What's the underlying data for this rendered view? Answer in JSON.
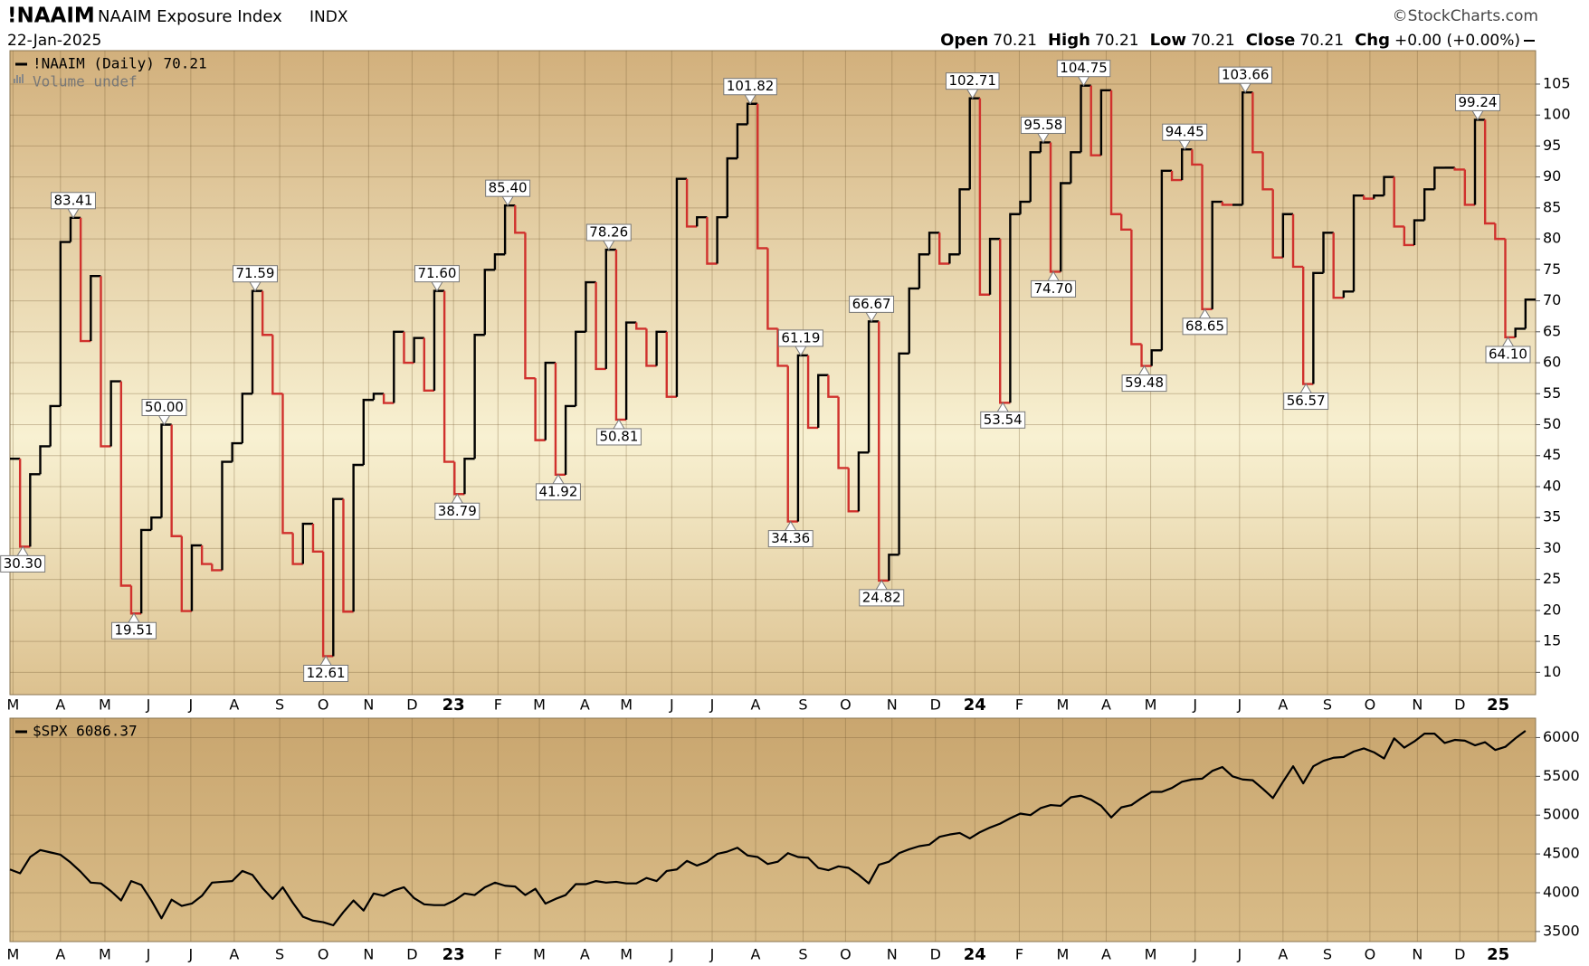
{
  "header": {
    "symbol": "!NAAIM",
    "name": "NAAIM Exposure Index",
    "exchange": "INDX",
    "date": "22-Jan-2025",
    "source": "©StockCharts.com",
    "quote": [
      {
        "label": "Open",
        "value": "70.21"
      },
      {
        "label": "High",
        "value": "70.21"
      },
      {
        "label": "Low",
        "value": "70.21"
      },
      {
        "label": "Close",
        "value": "70.21"
      },
      {
        "label": "Chg",
        "value": "+0.00 (+0.00%)"
      }
    ]
  },
  "chart_data": [
    {
      "type": "line",
      "step": true,
      "grid": true,
      "legend_extra": "Volume undef",
      "xlim": [
        0,
        151
      ],
      "ylim": [
        6.4,
        110.4
      ],
      "yticks": [
        10,
        15,
        20,
        25,
        30,
        35,
        40,
        45,
        50,
        55,
        60,
        65,
        70,
        75,
        80,
        85,
        90,
        95,
        100,
        105
      ],
      "xticks": [
        {
          "value": 0.3,
          "label": "M"
        },
        {
          "value": 5,
          "label": "A"
        },
        {
          "value": 9.4,
          "label": "M"
        },
        {
          "value": 13.7,
          "label": "J"
        },
        {
          "value": 17.9,
          "label": "J"
        },
        {
          "value": 22.2,
          "label": "A"
        },
        {
          "value": 26.7,
          "label": "S"
        },
        {
          "value": 31,
          "label": "O"
        },
        {
          "value": 35.5,
          "label": "N"
        },
        {
          "value": 39.8,
          "label": "D"
        },
        {
          "value": 43.9,
          "label": "23"
        },
        {
          "value": 48.3,
          "label": "F"
        },
        {
          "value": 52.4,
          "label": "M"
        },
        {
          "value": 56.9,
          "label": "A"
        },
        {
          "value": 61,
          "label": "M"
        },
        {
          "value": 65.5,
          "label": "J"
        },
        {
          "value": 69.5,
          "label": "J"
        },
        {
          "value": 73.8,
          "label": "A"
        },
        {
          "value": 78.5,
          "label": "S"
        },
        {
          "value": 82.7,
          "label": "O"
        },
        {
          "value": 87.3,
          "label": "N"
        },
        {
          "value": 91.6,
          "label": "D"
        },
        {
          "value": 95.5,
          "label": "24"
        },
        {
          "value": 99.9,
          "label": "F"
        },
        {
          "value": 104.2,
          "label": "M"
        },
        {
          "value": 108.5,
          "label": "A"
        },
        {
          "value": 112.9,
          "label": "M"
        },
        {
          "value": 117.3,
          "label": "J"
        },
        {
          "value": 121.7,
          "label": "J"
        },
        {
          "value": 126,
          "label": "A"
        },
        {
          "value": 130.4,
          "label": "S"
        },
        {
          "value": 134.6,
          "label": "O"
        },
        {
          "value": 139.3,
          "label": "N"
        },
        {
          "value": 143.5,
          "label": "D"
        },
        {
          "value": 147.3,
          "label": "25"
        }
      ],
      "series": [
        {
          "name": "!NAAIM (Daily) 70.21",
          "color": "#000000",
          "down_color": "#d0312d",
          "values": [
            44.5,
            30.3,
            42,
            46.5,
            53,
            79.5,
            83.41,
            63.5,
            74,
            46.5,
            57,
            24,
            19.51,
            33,
            35,
            50,
            32,
            19.9,
            30.5,
            27.5,
            26.5,
            44,
            47,
            55,
            71.59,
            64.5,
            55,
            32.5,
            27.5,
            34,
            29.5,
            12.61,
            38,
            19.8,
            43.5,
            54,
            55,
            53.5,
            65,
            60,
            64,
            55.5,
            71.6,
            44,
            38.79,
            44.5,
            64.5,
            75,
            77.5,
            85.4,
            81,
            57.5,
            47.5,
            60,
            41.92,
            53,
            65,
            73,
            59,
            78.26,
            50.81,
            66.5,
            65.5,
            59.5,
            65,
            54.5,
            89.7,
            82,
            83.5,
            76,
            83.5,
            93,
            98.5,
            101.82,
            78.5,
            65.5,
            59.5,
            34.36,
            61.19,
            49.5,
            58,
            54.5,
            43,
            36,
            45.5,
            66.67,
            24.82,
            29,
            61.5,
            72,
            77.5,
            81,
            76,
            77.5,
            88,
            102.71,
            71,
            80,
            53.54,
            84,
            86,
            94,
            95.58,
            74.7,
            89,
            94,
            104.75,
            93.5,
            104,
            84,
            81.5,
            63,
            59.48,
            62,
            91,
            89.5,
            94.45,
            92,
            68.65,
            86,
            85.5,
            85.5,
            103.66,
            94,
            88,
            77,
            84,
            75.5,
            56.57,
            74.5,
            81,
            70.5,
            71.5,
            87,
            86.5,
            87,
            90,
            82,
            79,
            83,
            88,
            91.5,
            91.5,
            91.2,
            85.5,
            99.24,
            82.5,
            80,
            64.1,
            65.5,
            70.21
          ],
          "value_labels": [
            null,
            "30.30",
            null,
            null,
            null,
            null,
            "83.41",
            null,
            null,
            null,
            null,
            null,
            "19.51",
            null,
            null,
            "50.00",
            null,
            null,
            null,
            null,
            null,
            null,
            null,
            null,
            "71.59",
            null,
            null,
            null,
            null,
            null,
            null,
            "12.61",
            null,
            null,
            null,
            null,
            null,
            null,
            null,
            null,
            null,
            null,
            "71.60",
            null,
            "38.79",
            null,
            null,
            null,
            null,
            "85.40",
            null,
            null,
            null,
            null,
            "41.92",
            null,
            null,
            null,
            null,
            "78.26",
            "50.81",
            null,
            null,
            null,
            null,
            null,
            null,
            null,
            null,
            null,
            null,
            null,
            null,
            "101.82",
            null,
            null,
            null,
            "34.36",
            "61.19",
            null,
            null,
            null,
            null,
            null,
            null,
            "66.67",
            "24.82",
            null,
            null,
            null,
            null,
            null,
            null,
            null,
            null,
            "102.71",
            null,
            null,
            "53.54",
            null,
            null,
            null,
            "95.58",
            "74.70",
            null,
            null,
            "104.75",
            null,
            null,
            null,
            null,
            null,
            "59.48",
            null,
            null,
            null,
            "94.45",
            null,
            "68.65",
            null,
            null,
            null,
            "103.66",
            null,
            null,
            null,
            null,
            null,
            "56.57",
            null,
            null,
            null,
            null,
            null,
            null,
            null,
            null,
            null,
            null,
            null,
            null,
            null,
            null,
            null,
            null,
            "99.24",
            null,
            null,
            "64.10",
            null,
            null
          ]
        }
      ]
    },
    {
      "type": "line",
      "grid": true,
      "xlim": [
        0,
        151
      ],
      "ylim": [
        3370,
        6250
      ],
      "yticks": [
        3500,
        4000,
        4500,
        5000,
        5500,
        6000
      ],
      "xticks": [
        {
          "value": 0.3,
          "label": "M"
        },
        {
          "value": 5,
          "label": "A"
        },
        {
          "value": 9.4,
          "label": "M"
        },
        {
          "value": 13.7,
          "label": "J"
        },
        {
          "value": 17.9,
          "label": "J"
        },
        {
          "value": 22.2,
          "label": "A"
        },
        {
          "value": 26.7,
          "label": "S"
        },
        {
          "value": 31,
          "label": "O"
        },
        {
          "value": 35.5,
          "label": "N"
        },
        {
          "value": 39.8,
          "label": "D"
        },
        {
          "value": 43.9,
          "label": "23"
        },
        {
          "value": 48.3,
          "label": "F"
        },
        {
          "value": 52.4,
          "label": "M"
        },
        {
          "value": 56.9,
          "label": "A"
        },
        {
          "value": 61,
          "label": "M"
        },
        {
          "value": 65.5,
          "label": "J"
        },
        {
          "value": 69.5,
          "label": "J"
        },
        {
          "value": 73.8,
          "label": "A"
        },
        {
          "value": 78.5,
          "label": "S"
        },
        {
          "value": 82.7,
          "label": "O"
        },
        {
          "value": 87.3,
          "label": "N"
        },
        {
          "value": 91.6,
          "label": "D"
        },
        {
          "value": 95.5,
          "label": "24"
        },
        {
          "value": 99.9,
          "label": "F"
        },
        {
          "value": 104.2,
          "label": "M"
        },
        {
          "value": 108.5,
          "label": "A"
        },
        {
          "value": 112.9,
          "label": "M"
        },
        {
          "value": 117.3,
          "label": "J"
        },
        {
          "value": 121.7,
          "label": "J"
        },
        {
          "value": 126,
          "label": "A"
        },
        {
          "value": 130.4,
          "label": "S"
        },
        {
          "value": 134.6,
          "label": "O"
        },
        {
          "value": 139.3,
          "label": "N"
        },
        {
          "value": 143.5,
          "label": "D"
        },
        {
          "value": 147.3,
          "label": "25"
        }
      ],
      "series": [
        {
          "name": "$SPX 6086.37",
          "color": "#000000",
          "values": [
            4300,
            4250,
            4460,
            4550,
            4520,
            4490,
            4390,
            4270,
            4130,
            4120,
            4020,
            3900,
            4150,
            4100,
            3900,
            3670,
            3910,
            3830,
            3860,
            3960,
            4130,
            4140,
            4150,
            4280,
            4230,
            4060,
            3920,
            4070,
            3870,
            3690,
            3640,
            3620,
            3580,
            3750,
            3900,
            3770,
            3990,
            3960,
            4030,
            4070,
            3930,
            3850,
            3840,
            3840,
            3900,
            3990,
            3970,
            4070,
            4130,
            4090,
            4080,
            3970,
            4050,
            3860,
            3920,
            3970,
            4110,
            4110,
            4150,
            4130,
            4140,
            4120,
            4120,
            4190,
            4150,
            4280,
            4300,
            4410,
            4350,
            4400,
            4500,
            4530,
            4580,
            4480,
            4460,
            4370,
            4400,
            4510,
            4460,
            4450,
            4320,
            4290,
            4340,
            4320,
            4230,
            4120,
            4360,
            4400,
            4510,
            4560,
            4600,
            4620,
            4720,
            4750,
            4770,
            4700,
            4780,
            4840,
            4890,
            4960,
            5020,
            5000,
            5090,
            5130,
            5120,
            5230,
            5250,
            5200,
            5120,
            4970,
            5100,
            5130,
            5220,
            5300,
            5300,
            5350,
            5430,
            5460,
            5470,
            5570,
            5620,
            5500,
            5460,
            5450,
            5340,
            5220,
            5430,
            5630,
            5410,
            5630,
            5700,
            5740,
            5750,
            5820,
            5860,
            5810,
            5730,
            5990,
            5870,
            5950,
            6050,
            6050,
            5930,
            5970,
            5960,
            5900,
            5940,
            5840,
            5880,
            5990,
            6086.37
          ]
        }
      ]
    }
  ]
}
